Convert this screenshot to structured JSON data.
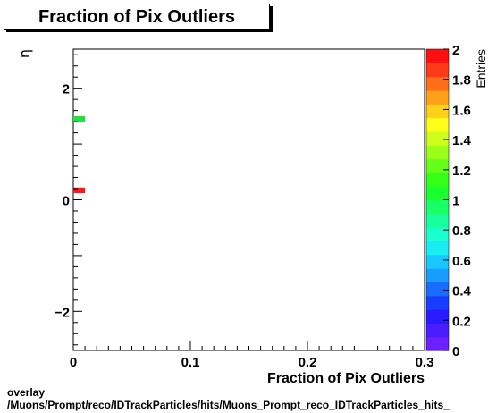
{
  "title": "Fraction of Pix Outliers",
  "footer": {
    "line1": "overlay",
    "line2": "/Muons/Prompt/reco/IDTrackParticles/hits/Muons_Prompt_reco_IDTrackParticles_hits_"
  },
  "chart_data": {
    "type": "heatmap",
    "xlabel": "Fraction of Pix Outliers",
    "ylabel": "η",
    "zlabel": "Entries",
    "xlim": [
      0,
      0.3
    ],
    "ylim": [
      -2.7,
      2.7
    ],
    "zlim": [
      0,
      2
    ],
    "x_ticks": [
      0,
      0.1,
      0.2,
      0.3
    ],
    "x_tick_labels": [
      "0",
      "0.1",
      "0.2",
      "0.3"
    ],
    "y_ticks": [
      -2,
      0,
      2
    ],
    "y_tick_labels": [
      "−2",
      "0",
      "2"
    ],
    "z_ticks": [
      0,
      0.2,
      0.4,
      0.6,
      0.8,
      1,
      1.2,
      1.4,
      1.6,
      1.8,
      2
    ],
    "z_tick_labels": [
      "0",
      "0.2",
      "0.4",
      "0.6",
      "0.8",
      "1",
      "1.2",
      "1.4",
      "1.6",
      "1.8",
      "2"
    ],
    "cells": [
      {
        "x0": 0.0,
        "x1": 0.01,
        "y0": 1.4,
        "y1": 1.5,
        "value": 1,
        "color": "#22e044"
      },
      {
        "x0": 0.0,
        "x1": 0.01,
        "y0": 0.12,
        "y1": 0.22,
        "value": 2,
        "color": "#ff1a1a"
      }
    ],
    "palette": [
      "#6d1fff",
      "#4b1cff",
      "#2a1aff",
      "#1a3cff",
      "#1a6cff",
      "#1a9cff",
      "#19c7ff",
      "#19ecf2",
      "#19ffd0",
      "#19ffa0",
      "#19ff66",
      "#19ff2e",
      "#33ff19",
      "#66ff19",
      "#9cff19",
      "#ccff19",
      "#ffff19",
      "#ffd019",
      "#ffa019",
      "#ff6e19",
      "#ff3a19",
      "#ff0f0f"
    ]
  }
}
